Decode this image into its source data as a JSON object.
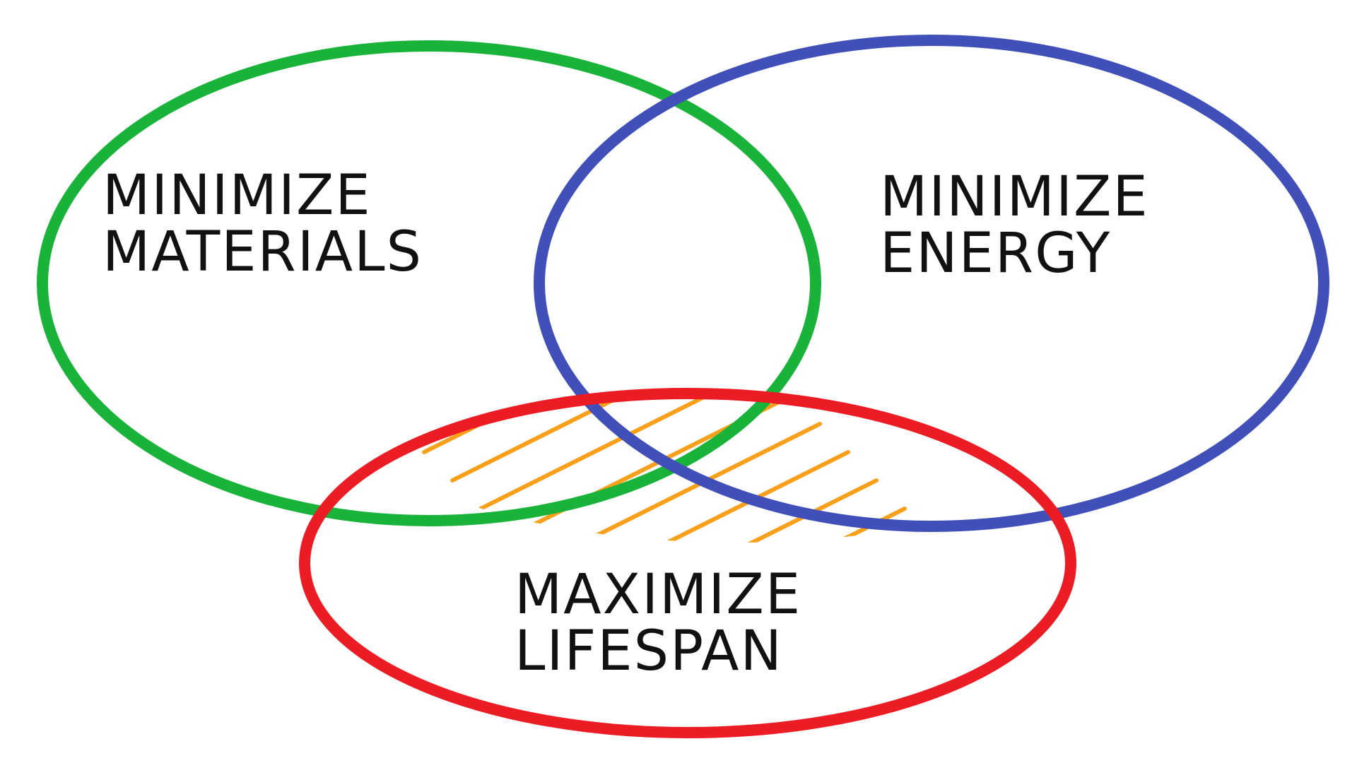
{
  "diagram": {
    "type": "venn",
    "sets": [
      {
        "id": "materials",
        "lines": [
          "MINIMIZE",
          "MATERIALS"
        ],
        "color": "#19b33a"
      },
      {
        "id": "energy",
        "lines": [
          "MINIMIZE",
          "ENERGY"
        ],
        "color": "#4150b8"
      },
      {
        "id": "lifespan",
        "lines": [
          "MAXIMIZE",
          "LIFESPAN"
        ],
        "color": "#ec1c24"
      }
    ],
    "intersection": {
      "fill": "hatched",
      "color": "#f7a11a"
    },
    "label_color": "#111111"
  }
}
